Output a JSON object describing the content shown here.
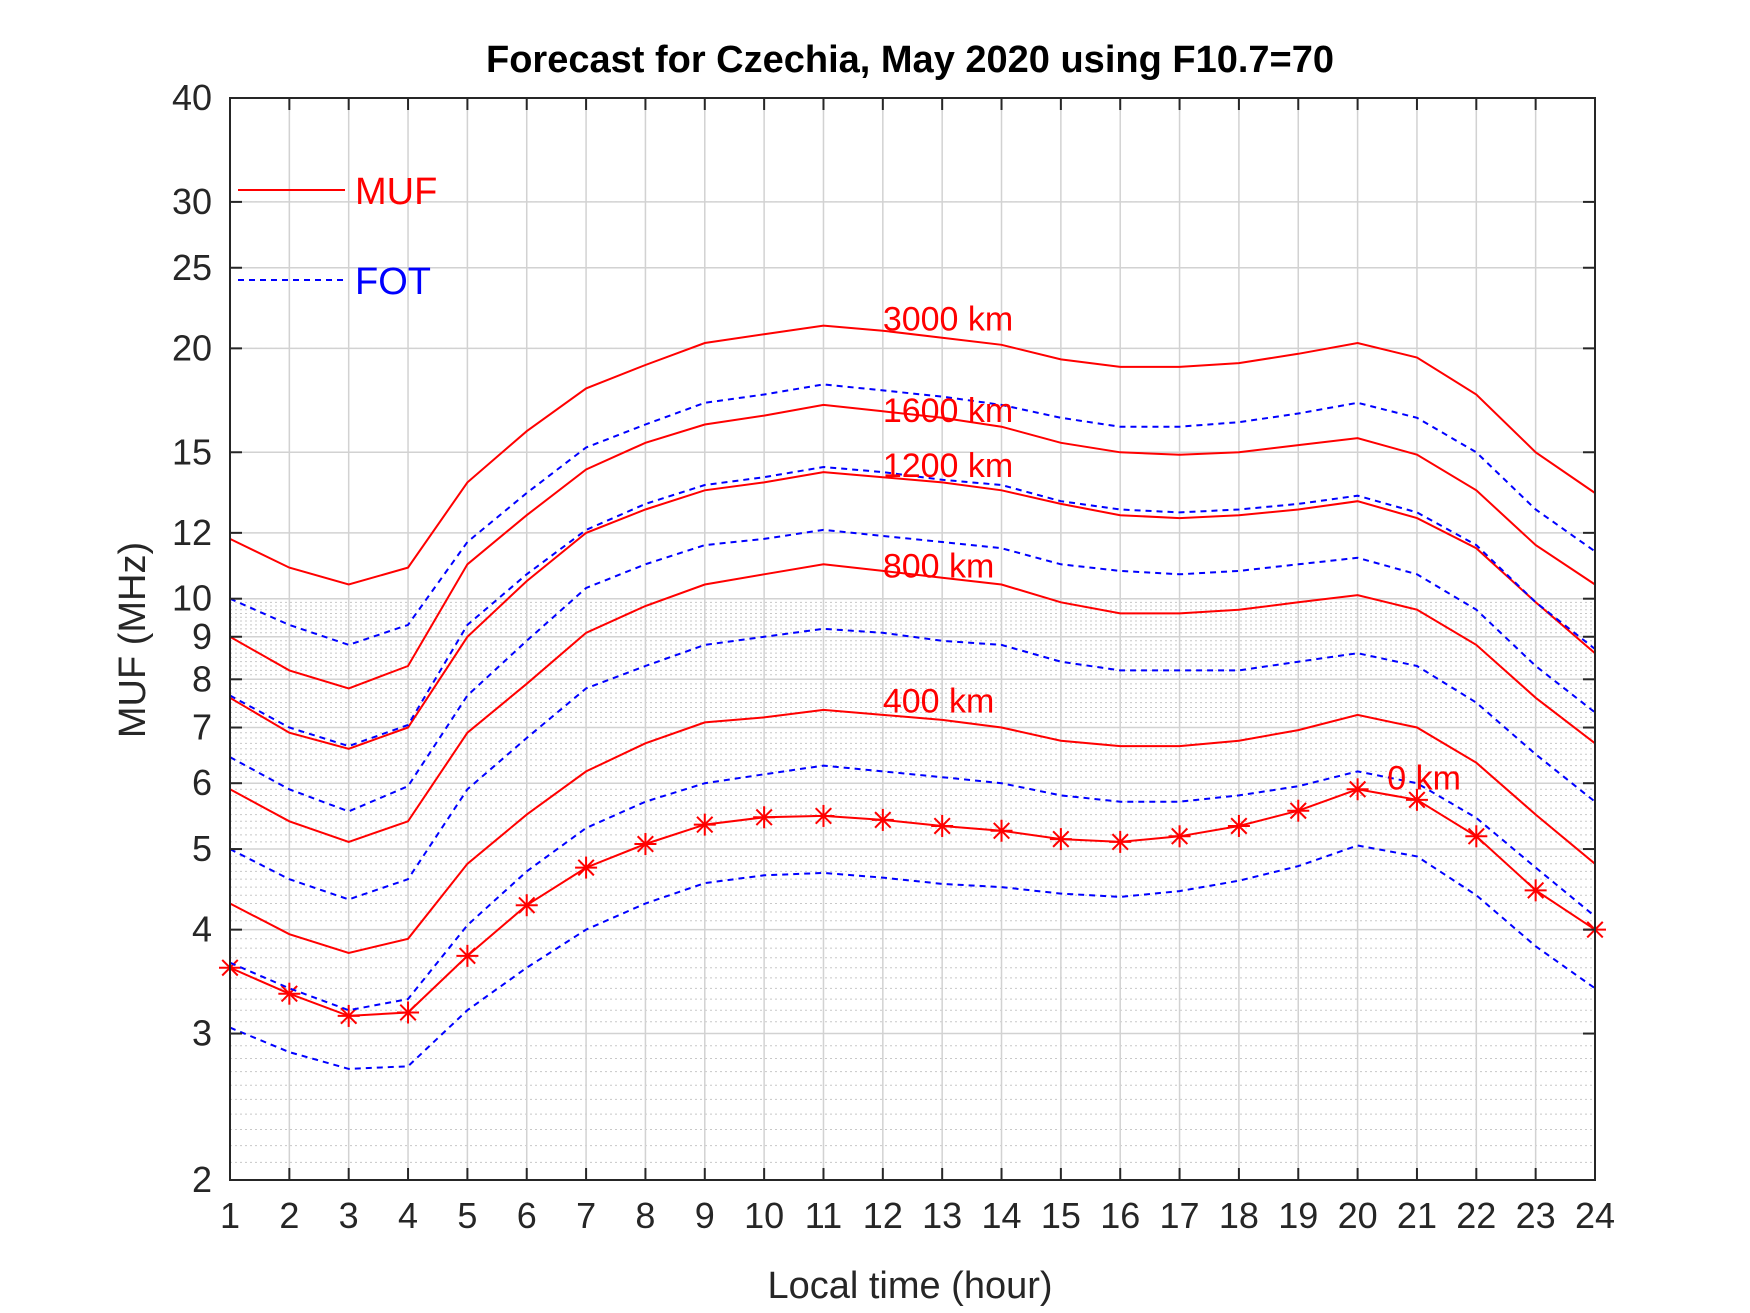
{
  "chart_data": {
    "type": "line",
    "title": "Forecast for Czechia, May 2020 using F10.7=70",
    "xlabel": "Local time (hour)",
    "ylabel": "MUF (MHz)",
    "xlim": [
      1,
      24
    ],
    "ylim": [
      2,
      40
    ],
    "yscale": "log",
    "grid": true,
    "x": [
      1,
      2,
      3,
      4,
      5,
      6,
      7,
      8,
      9,
      10,
      11,
      12,
      13,
      14,
      15,
      16,
      17,
      18,
      19,
      20,
      21,
      22,
      23,
      24
    ],
    "xticks": [
      "1",
      "2",
      "3",
      "4",
      "5",
      "6",
      "7",
      "8",
      "9",
      "10",
      "11",
      "12",
      "13",
      "14",
      "15",
      "16",
      "17",
      "18",
      "19",
      "20",
      "21",
      "22",
      "23",
      "24"
    ],
    "yticks": [
      2,
      3,
      4,
      5,
      6,
      7,
      8,
      9,
      10,
      12,
      15,
      20,
      25,
      30,
      40
    ],
    "ytick_labels": [
      "2",
      "3",
      "4",
      "5",
      "6",
      "7",
      "8",
      "9",
      "10",
      "12",
      "15",
      "20",
      "25",
      "30",
      "40"
    ],
    "legend": {
      "placement": "top-left",
      "entries": [
        {
          "label": "MUF",
          "style": "solid",
          "color": "#ff0000"
        },
        {
          "label": "FOT",
          "style": "dashed",
          "color": "#0000ff"
        }
      ]
    },
    "series": [
      {
        "name": "3000 km",
        "kind": "MUF",
        "color": "#ff0000",
        "dash": "solid",
        "label_at": {
          "x": 12,
          "y": 21.0
        },
        "values": [
          11.8,
          10.9,
          10.4,
          10.9,
          13.8,
          15.9,
          17.9,
          19.1,
          20.3,
          20.8,
          21.3,
          21.0,
          20.6,
          20.2,
          19.4,
          19.0,
          19.0,
          19.2,
          19.7,
          20.3,
          19.5,
          17.6,
          15.0,
          13.4
        ]
      },
      {
        "name": "1600 km",
        "kind": "MUF",
        "color": "#ff0000",
        "dash": "solid",
        "label_at": {
          "x": 12,
          "y": 16.3
        },
        "values": [
          9.0,
          8.2,
          7.8,
          8.3,
          11.0,
          12.6,
          14.3,
          15.4,
          16.2,
          16.6,
          17.1,
          16.8,
          16.5,
          16.1,
          15.4,
          15.0,
          14.9,
          15.0,
          15.3,
          15.6,
          14.9,
          13.5,
          11.6,
          10.4
        ]
      },
      {
        "name": "1200 km",
        "kind": "MUF",
        "color": "#ff0000",
        "dash": "solid",
        "label_at": {
          "x": 12,
          "y": 14.0
        },
        "values": [
          7.6,
          6.9,
          6.6,
          7.0,
          9.0,
          10.5,
          12.0,
          12.8,
          13.5,
          13.8,
          14.2,
          14.0,
          13.8,
          13.5,
          13.0,
          12.6,
          12.5,
          12.6,
          12.8,
          13.1,
          12.5,
          11.5,
          9.9,
          8.6
        ]
      },
      {
        "name": "800 km",
        "kind": "MUF",
        "color": "#ff0000",
        "dash": "solid",
        "label_at": {
          "x": 12,
          "y": 10.6
        },
        "values": [
          5.9,
          5.4,
          5.1,
          5.4,
          6.9,
          7.9,
          9.1,
          9.8,
          10.4,
          10.7,
          11.0,
          10.8,
          10.6,
          10.4,
          9.9,
          9.6,
          9.6,
          9.7,
          9.9,
          10.1,
          9.7,
          8.8,
          7.6,
          6.7
        ]
      },
      {
        "name": "400 km",
        "kind": "MUF",
        "color": "#ff0000",
        "dash": "solid",
        "label_at": {
          "x": 12,
          "y": 7.3
        },
        "values": [
          4.3,
          3.95,
          3.75,
          3.9,
          4.8,
          5.5,
          6.2,
          6.7,
          7.1,
          7.2,
          7.35,
          7.25,
          7.15,
          7.0,
          6.75,
          6.65,
          6.65,
          6.75,
          6.95,
          7.25,
          7.0,
          6.35,
          5.5,
          4.8
        ]
      },
      {
        "name": "0 km",
        "kind": "MUF",
        "color": "#ff0000",
        "dash": "solid",
        "marker": "asterisk",
        "label_at": {
          "x": 20.5,
          "y": 5.9
        },
        "values": [
          3.6,
          3.35,
          3.15,
          3.18,
          3.72,
          4.28,
          4.75,
          5.07,
          5.35,
          5.46,
          5.48,
          5.42,
          5.33,
          5.26,
          5.14,
          5.1,
          5.18,
          5.33,
          5.56,
          5.9,
          5.73,
          5.18,
          4.46,
          4.0
        ]
      },
      {
        "kind": "FOT",
        "color": "#0000ff",
        "dash": "dashed",
        "values": [
          10.0,
          9.3,
          8.8,
          9.3,
          11.7,
          13.4,
          15.2,
          16.2,
          17.2,
          17.6,
          18.1,
          17.8,
          17.5,
          17.1,
          16.5,
          16.1,
          16.1,
          16.3,
          16.7,
          17.2,
          16.5,
          15.0,
          12.8,
          11.4
        ]
      },
      {
        "kind": "FOT",
        "color": "#0000ff",
        "dash": "dashed",
        "values": [
          7.65,
          7.0,
          6.65,
          7.05,
          9.3,
          10.7,
          12.1,
          13.0,
          13.7,
          14.0,
          14.4,
          14.2,
          13.9,
          13.7,
          13.1,
          12.8,
          12.7,
          12.8,
          13.0,
          13.3,
          12.7,
          11.6,
          9.9,
          8.7
        ]
      },
      {
        "kind": "FOT",
        "color": "#0000ff",
        "dash": "dashed",
        "values": [
          6.45,
          5.9,
          5.55,
          5.95,
          7.65,
          8.9,
          10.3,
          11.0,
          11.6,
          11.8,
          12.1,
          11.9,
          11.7,
          11.5,
          11.0,
          10.8,
          10.7,
          10.8,
          11.0,
          11.2,
          10.7,
          9.7,
          8.3,
          7.3
        ]
      },
      {
        "kind": "FOT",
        "color": "#0000ff",
        "dash": "dashed",
        "values": [
          5.0,
          4.6,
          4.35,
          4.6,
          5.9,
          6.8,
          7.8,
          8.3,
          8.8,
          9.0,
          9.2,
          9.1,
          8.9,
          8.8,
          8.4,
          8.2,
          8.2,
          8.2,
          8.4,
          8.6,
          8.3,
          7.5,
          6.5,
          5.7
        ]
      },
      {
        "kind": "FOT",
        "color": "#0000ff",
        "dash": "dashed",
        "values": [
          3.65,
          3.4,
          3.2,
          3.3,
          4.05,
          4.7,
          5.3,
          5.7,
          6.0,
          6.15,
          6.3,
          6.2,
          6.1,
          6.0,
          5.8,
          5.7,
          5.7,
          5.8,
          5.95,
          6.2,
          6.0,
          5.45,
          4.75,
          4.15
        ]
      },
      {
        "kind": "FOT",
        "color": "#0000ff",
        "dash": "dashed",
        "values": [
          3.05,
          2.85,
          2.72,
          2.74,
          3.2,
          3.6,
          4.0,
          4.3,
          4.55,
          4.65,
          4.68,
          4.62,
          4.54,
          4.5,
          4.42,
          4.38,
          4.45,
          4.58,
          4.77,
          5.05,
          4.9,
          4.4,
          3.82,
          3.4
        ]
      }
    ]
  }
}
